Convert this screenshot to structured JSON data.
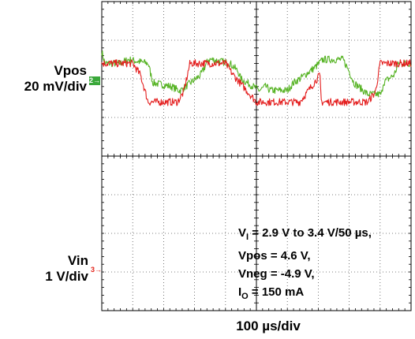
{
  "channels": {
    "ch2": {
      "name": "Vpos",
      "scale": "20 mV/div",
      "marker": "2",
      "color": "#56b324"
    },
    "ch3": {
      "name": "Vin",
      "scale": "1 V/div",
      "marker": "3",
      "color": "#e41f1f"
    }
  },
  "timebase": "100 µs/div",
  "conditions": {
    "line1_a": "V",
    "line1_sub": "I",
    "line1_b": " = 2.9 V to 3.4 V/50 µs,",
    "line2": "Vpos = 4.6 V,",
    "line3": "Vneg = -4.9 V,",
    "line4_a": "I",
    "line4_sub": "O",
    "line4_b": " = 150 mA"
  },
  "chart_data": {
    "type": "line",
    "grid": true,
    "divisions": {
      "x": 10,
      "y": 8
    },
    "x_per_div": "100 µs",
    "x_unit": "µs",
    "xlim": [
      0,
      1000
    ],
    "series": [
      {
        "name": "Vpos",
        "unit": "mV",
        "color": "#56b324",
        "ylim": [
          -40,
          40
        ],
        "x": [
          0,
          10,
          60,
          85,
          150,
          165,
          225,
          250,
          255,
          320,
          345,
          355,
          415,
          440,
          450,
          510,
          530,
          545,
          600,
          620,
          640,
          690,
          715,
          720,
          780,
          800,
          815,
          860,
          905,
          910,
          945,
          960,
          1000
        ],
        "y": [
          27,
          24,
          24,
          25,
          24,
          19,
          18,
          17,
          17,
          21,
          25,
          25,
          24,
          22,
          20,
          17,
          18,
          17,
          17,
          19,
          20,
          23,
          25,
          25,
          25,
          22,
          19,
          16,
          16,
          19,
          21,
          24,
          24
        ]
      },
      {
        "name": "Vin",
        "unit": "V",
        "color": "#e41f1f",
        "ylim": [
          -2.5,
          1.5
        ],
        "x": [
          0,
          100,
          125,
          150,
          230,
          245,
          265,
          285,
          385,
          400,
          425,
          500,
          640,
          665,
          705,
          710,
          860,
          885,
          900,
          1000
        ],
        "y": [
          0.7,
          0.7,
          0.55,
          0.2,
          0.2,
          0.2,
          0.33,
          0.7,
          0.7,
          0.7,
          0.55,
          0.2,
          0.2,
          0.33,
          0.55,
          0.2,
          0.2,
          0.33,
          0.7,
          0.7
        ]
      }
    ]
  }
}
